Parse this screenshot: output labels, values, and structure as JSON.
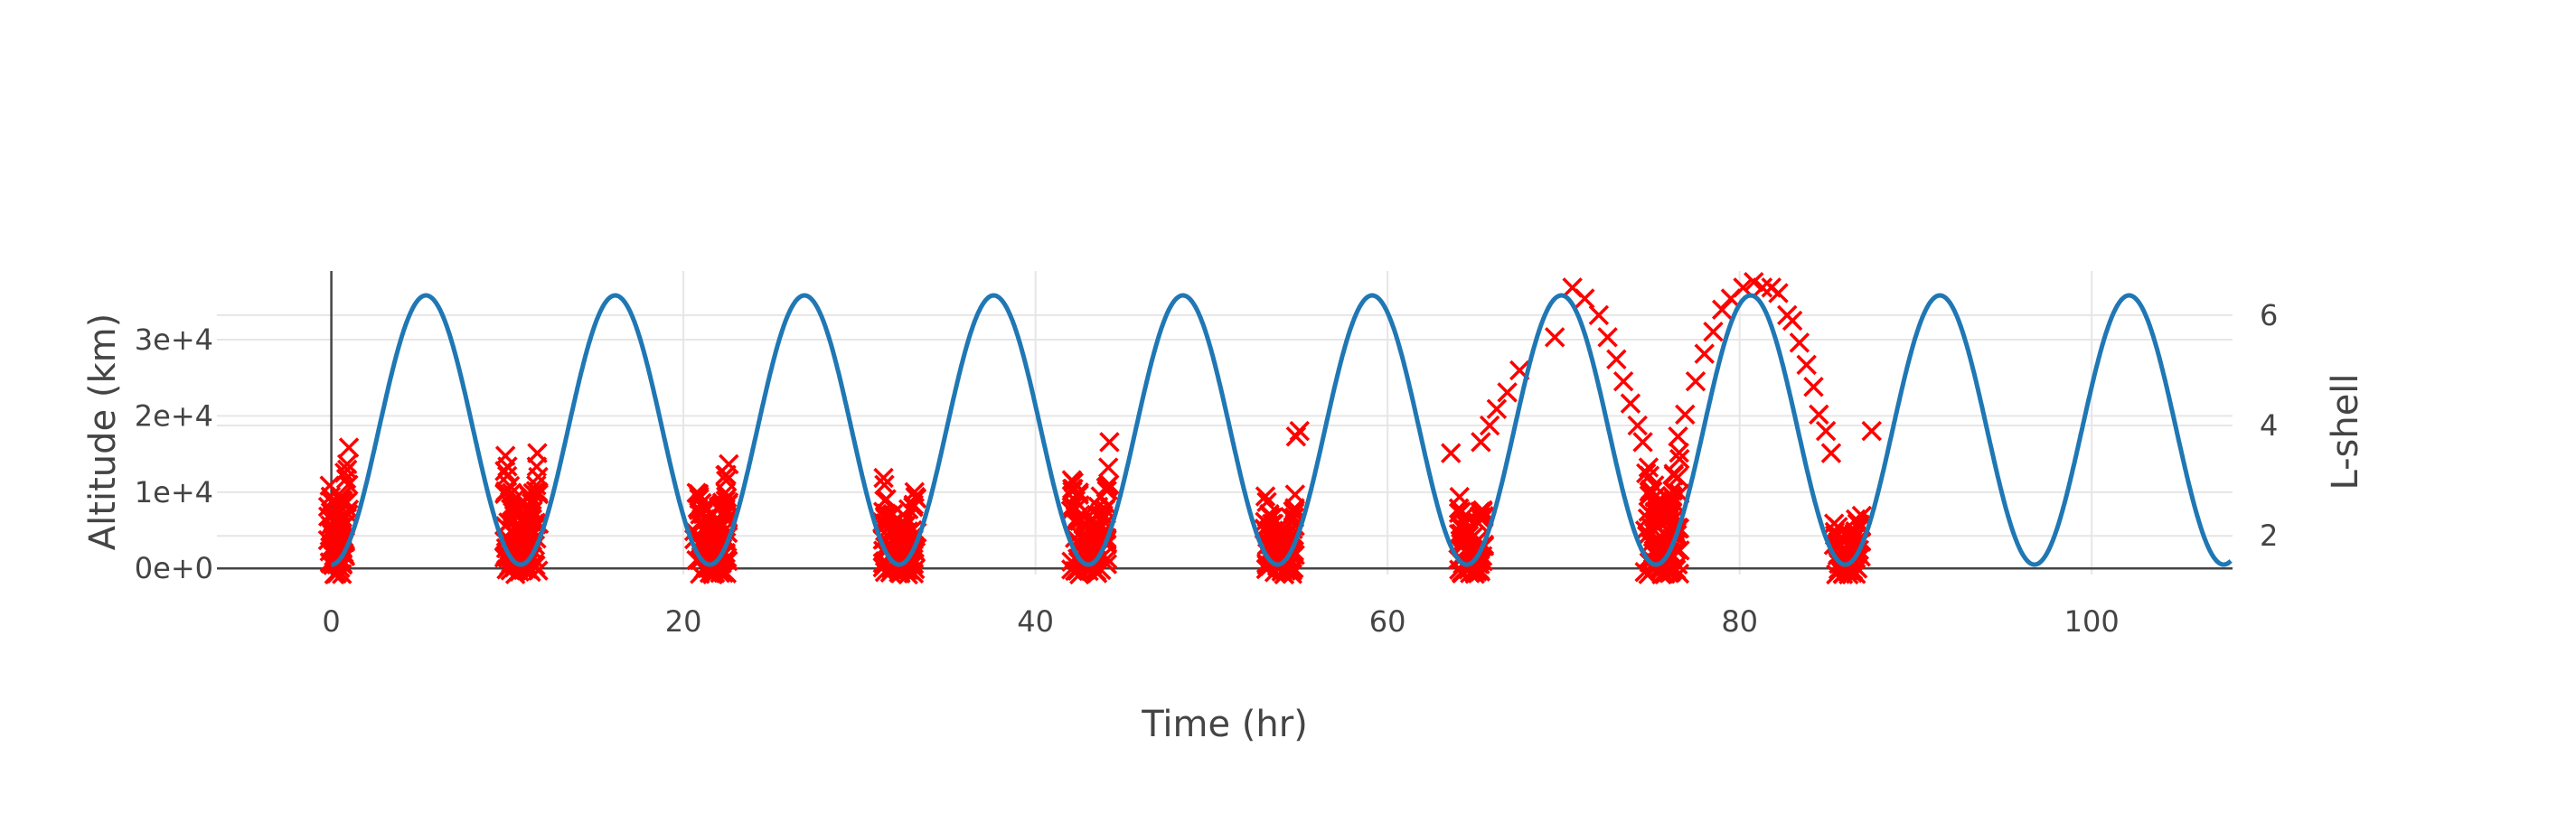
{
  "chart_data": {
    "type": "scatter",
    "xlabel": "Time (hr)",
    "ylabel": "Altitude (km)",
    "y2label": "L-shell",
    "xlim": [
      -6.5,
      108
    ],
    "ylim": [
      -800,
      39000
    ],
    "y2lim": [
      1.3,
      6.8
    ],
    "x_ticks": [
      0,
      20,
      40,
      60,
      80,
      100
    ],
    "y_ticks": [
      0,
      10000,
      20000,
      30000
    ],
    "y_tick_labels": [
      "0e+0",
      "1e+4",
      "2e+4",
      "3e+4"
    ],
    "y2_ticks": [
      2,
      4,
      6
    ],
    "grid": true,
    "series": [
      {
        "kind": "line",
        "axis": "left",
        "color": "#1f77b4",
        "period_hr": 10.75,
        "perigee_time_hr": 0.0,
        "perigee_km": 500,
        "apogee_km": 35800,
        "x_range": [
          0,
          107.9
        ]
      },
      {
        "kind": "markers",
        "axis": "right",
        "symbol": "x",
        "color": "#ff0000",
        "clusters": [
          {
            "center": 0.3,
            "xmin": -0.2,
            "xmax": 1.0,
            "lmin": 1.3,
            "lmax": 3.7,
            "n": 85
          },
          {
            "center": 10.8,
            "xmin": 9.8,
            "xmax": 11.8,
            "lmin": 1.3,
            "lmax": 3.6,
            "n": 120
          },
          {
            "center": 21.6,
            "xmin": 20.6,
            "xmax": 22.6,
            "lmin": 1.3,
            "lmax": 3.4,
            "n": 110
          },
          {
            "center": 32.3,
            "xmin": 31.3,
            "xmax": 33.3,
            "lmin": 1.3,
            "lmax": 3.3,
            "n": 100
          },
          {
            "center": 43.1,
            "xmin": 42.0,
            "xmax": 44.2,
            "lmin": 1.3,
            "lmax": 3.4,
            "n": 100
          },
          {
            "center": 53.9,
            "xmin": 53.0,
            "xmax": 54.8,
            "lmin": 1.3,
            "lmax": 2.9,
            "n": 85
          },
          {
            "center": 64.8,
            "xmin": 64.0,
            "xmax": 65.5,
            "lmin": 1.3,
            "lmax": 2.9,
            "n": 80
          },
          {
            "center": 75.6,
            "xmin": 74.6,
            "xmax": 76.6,
            "lmin": 1.3,
            "lmax": 3.9,
            "n": 110
          },
          {
            "center": 86.1,
            "xmin": 85.3,
            "xmax": 87.0,
            "lmin": 1.3,
            "lmax": 2.5,
            "n": 55
          }
        ],
        "extra_points": [
          [
            1.0,
            3.6
          ],
          [
            0.9,
            3.3
          ],
          [
            11.7,
            3.5
          ],
          [
            44.2,
            3.7
          ],
          [
            55.0,
            3.9
          ],
          [
            54.8,
            3.8
          ],
          [
            63.6,
            3.5
          ],
          [
            65.3,
            3.7
          ],
          [
            65.8,
            4.0
          ],
          [
            66.2,
            4.3
          ],
          [
            66.8,
            4.6
          ],
          [
            67.5,
            5.0
          ],
          [
            69.5,
            5.6
          ],
          [
            70.5,
            6.5
          ],
          [
            71.2,
            6.3
          ],
          [
            72.0,
            6.0
          ],
          [
            72.5,
            5.6
          ],
          [
            73.0,
            5.2
          ],
          [
            73.4,
            4.8
          ],
          [
            73.8,
            4.4
          ],
          [
            74.2,
            4.0
          ],
          [
            74.5,
            3.7
          ],
          [
            76.5,
            3.8
          ],
          [
            76.9,
            4.2
          ],
          [
            77.5,
            4.8
          ],
          [
            78.0,
            5.3
          ],
          [
            78.5,
            5.7
          ],
          [
            79.0,
            6.1
          ],
          [
            79.5,
            6.3
          ],
          [
            80.2,
            6.5
          ],
          [
            80.8,
            6.6
          ],
          [
            81.3,
            6.5
          ],
          [
            81.8,
            6.5
          ],
          [
            82.2,
            6.4
          ],
          [
            82.7,
            6.0
          ],
          [
            83.0,
            5.9
          ],
          [
            83.4,
            5.5
          ],
          [
            83.8,
            5.1
          ],
          [
            84.2,
            4.7
          ],
          [
            84.5,
            4.2
          ],
          [
            84.9,
            3.9
          ],
          [
            85.2,
            3.5
          ],
          [
            87.5,
            3.9
          ],
          [
            86.6,
            2.3
          ]
        ]
      }
    ]
  }
}
